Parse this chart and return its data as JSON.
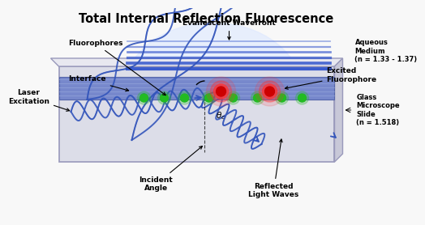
{
  "title": "Total Internal Reflection Fluorescence",
  "bg_color": "#f5f5f5",
  "title_fontsize": 10.5,
  "wave_color": "#3355bb",
  "evanescent_lines_color": "#3355cc",
  "fluorophore_green_color": "#22bb22",
  "fluorophore_red_color": "#dd2222",
  "labels": {
    "evanescent_wavefront": "Evanescent Wavefront",
    "aqueous_medium": "Aqueous\nMedium\n(n = 1.33 - 1.37)",
    "fluorophores": "Fluorophores",
    "interface": "Interface",
    "excited_fluorophore": "Excited\nFluorophore",
    "laser_excitation": "Laser\nExcitation",
    "theta_c": "θ₁ₜ",
    "incident_angle": "Incident\nAngle",
    "reflected_light": "Reflected\nLight Waves",
    "glass_slide": "Glass\nMicroscope\nSlide\n(n = 1.518)"
  }
}
